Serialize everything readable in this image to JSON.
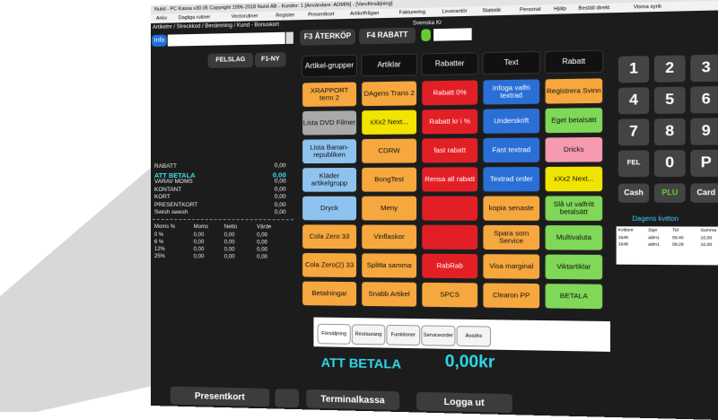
{
  "window": {
    "title": "Nutid - PC Kassa v30.05 Copyright 1996-2018 Nutid AB - Kundnr: 1 [Användare: ADMIN] - [Varuförsäljning]",
    "menu": [
      "Arkiv",
      "Dagliga rutiner",
      "Vectorutiner",
      "Register",
      "Presentkort",
      "Artikelfrågan",
      "Fakturering",
      "Leverantör",
      "Statistik",
      "Personal",
      "Hjälp",
      "Beställ direkt",
      "Visma synk"
    ]
  },
  "search": {
    "label": "Artikelnr / Streckkod / Benämning / Kund - Bonuskort",
    "info": "Info",
    "buttons": [
      "F3 ÅTERKÖP",
      "F4 RABATT"
    ],
    "currency": "Svenska Kr"
  },
  "left_buttons": [
    "FELSLAG",
    "F1-NY"
  ],
  "summary": [
    {
      "label": "RABATT",
      "value": "0,00"
    },
    {
      "label": "ATT BETALA",
      "value": "0,00"
    },
    {
      "label": "VARAV MOMS",
      "value": "0,00"
    },
    {
      "label": "KONTANT",
      "value": "0,00"
    },
    {
      "label": "KORT",
      "value": "0,00"
    },
    {
      "label": "PRESENTKORT",
      "value": "0,00"
    },
    {
      "label": "Swish swesh",
      "value": "0,00"
    }
  ],
  "moms": {
    "headers": [
      "Moms %",
      "Moms",
      "Netto",
      "Värde"
    ],
    "rows": [
      [
        "0 %",
        "0,00",
        "0,00",
        "0,00"
      ],
      [
        "6 %",
        "0,00",
        "0,00",
        "0,00"
      ],
      [
        "12%",
        "0,00",
        "0,00",
        "0,00"
      ],
      [
        "25%",
        "0,00",
        "0,00",
        "0,00"
      ]
    ]
  },
  "grid": {
    "headers": [
      "Artikel-grupper",
      "Artiklar",
      "Rabatter",
      "Text",
      "Rabatt"
    ],
    "rows": [
      [
        {
          "text": "XRAPPORT term 2",
          "color": "#f6a83e"
        },
        {
          "text": "DAgens Trans 2",
          "color": "#f6a83e"
        },
        {
          "text": "Rabatt 0%",
          "color": "#e31f26"
        },
        {
          "text": "Infoga valfri textrad",
          "color": "#2a6fd6"
        },
        {
          "text": "Registrera Svinn",
          "color": "#f6a83e"
        }
      ],
      [
        {
          "text": "Lista DVD Filmer",
          "color": "#a9a9a9"
        },
        {
          "text": "xXx2 Next...",
          "color": "#f0e400"
        },
        {
          "text": "Rabatt kr i %",
          "color": "#e31f26"
        },
        {
          "text": "Underskrift",
          "color": "#2a6fd6"
        },
        {
          "text": "Eget betalsätt",
          "color": "#7fd858"
        }
      ],
      [
        {
          "text": "Lista Banan-republiken",
          "color": "#8ec3f0"
        },
        {
          "text": "CDRW",
          "color": "#f6a83e"
        },
        {
          "text": "fast rabatt",
          "color": "#e31f26"
        },
        {
          "text": "Fast textrad",
          "color": "#2a6fd6"
        },
        {
          "text": "Dricks",
          "color": "#f59ab0"
        }
      ],
      [
        {
          "text": "Kläder artikelgrupp",
          "color": "#8ec3f0"
        },
        {
          "text": "BongTest",
          "color": "#f6a83e"
        },
        {
          "text": "Rensa all rabatt",
          "color": "#e31f26"
        },
        {
          "text": "Textrad order",
          "color": "#2a6fd6"
        },
        {
          "text": "xXx2 Next...",
          "color": "#f0e400"
        }
      ],
      [
        {
          "text": "Dryck",
          "color": "#8ec3f0"
        },
        {
          "text": "Meny",
          "color": "#f6a83e"
        },
        {
          "color": "#e31f26"
        },
        {
          "text": "kopia senaste",
          "color": "#f6a83e"
        },
        {
          "text": "Slå ut valfritt betalsätt",
          "color": "#7fd858"
        }
      ],
      [
        {
          "text": "Cola Zero 33",
          "color": "#f6a83e"
        },
        {
          "text": "Vinflaskor",
          "color": "#f6a83e"
        },
        {
          "color": "#e31f26"
        },
        {
          "text": "Spara som Service",
          "color": "#f6a83e"
        },
        {
          "text": "Multivaluta",
          "color": "#7fd858"
        }
      ],
      [
        {
          "text": "Cola Zero(2) 33",
          "color": "#f6a83e"
        },
        {
          "text": "Splitta samma",
          "color": "#f6a83e"
        },
        {
          "text": "RabRab",
          "color": "#e31f26"
        },
        {
          "text": "Visa marginal",
          "color": "#f6a83e"
        },
        {
          "text": "Viktartiklar",
          "color": "#7fd858"
        }
      ],
      [
        {
          "text": "Betalningar",
          "color": "#f6a83e"
        },
        {
          "text": "Snabb Artikel",
          "color": "#f6a83e"
        },
        {
          "text": "SPCS",
          "color": "#f6a83e"
        },
        {
          "text": "Clearon PP",
          "color": "#f6a83e"
        },
        {
          "text": "BETALA",
          "color": "#7fd858"
        }
      ]
    ]
  },
  "tabs": [
    "Försäljning",
    "Restaurang",
    "Funktioner",
    "Serviceorder",
    "Avadra"
  ],
  "total": {
    "label": "ATT BETALA",
    "value": "0,00kr"
  },
  "keypad": [
    [
      "1",
      "2",
      "3"
    ],
    [
      "4",
      "5",
      "6"
    ],
    [
      "7",
      "8",
      "9"
    ],
    [
      "FEL",
      "0",
      "P"
    ]
  ],
  "keypad_actions": [
    "Cash",
    "PLU",
    "Card"
  ],
  "receipts": {
    "title": "Dagens kvitton",
    "headers": [
      "Kvittonr",
      "Sign",
      "Tid",
      "Summa"
    ],
    "rows": [
      [
        "1649",
        "adm1",
        "09:40",
        "10,00"
      ],
      [
        "1648",
        "adm1",
        "09:29",
        "10,00"
      ]
    ]
  },
  "bottom_buttons": [
    "Presentkort",
    "Terminalkassa",
    "Logga ut"
  ]
}
